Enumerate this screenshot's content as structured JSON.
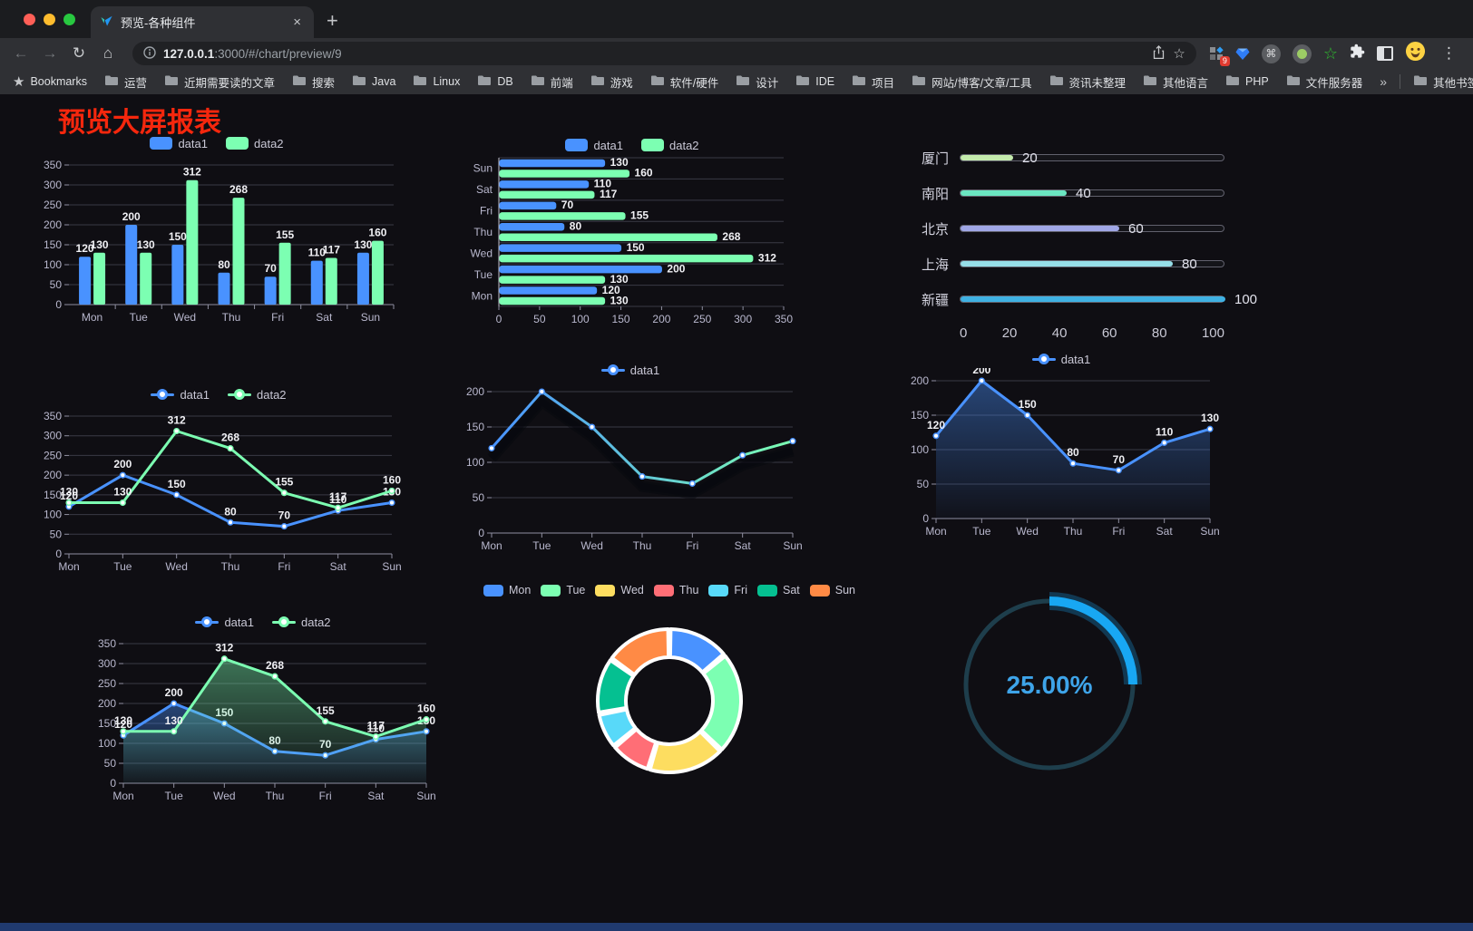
{
  "browser": {
    "tab_title": "预览-各种组件",
    "url_host": "127.0.0.1",
    "url_path": ":3000/#/chart/preview/9",
    "bookmarks_label": "Bookmarks",
    "bookmarks": [
      "运营",
      "近期需要读的文章",
      "搜索",
      "Java",
      "Linux",
      "DB",
      "前端",
      "游戏",
      "软件/硬件",
      "设计",
      "IDE",
      "项目",
      "网站/博客/文章/工具",
      "资讯未整理",
      "其他语言",
      "PHP",
      "文件服务器"
    ],
    "overflow_chevron": "»",
    "other_bookmarks": "其他书签",
    "extension_badge": "9",
    "new_tab_label": "+",
    "tab_close_label": "×"
  },
  "page": {
    "title": "预览大屏报表",
    "title_color": "#f5270d"
  },
  "chart_data": [
    {
      "id": "grouped-bar",
      "type": "bar",
      "categories": [
        "Mon",
        "Tue",
        "Wed",
        "Thu",
        "Fri",
        "Sat",
        "Sun"
      ],
      "series": [
        {
          "name": "data1",
          "color": "#4992ff",
          "values": [
            120,
            200,
            150,
            80,
            70,
            110,
            130
          ]
        },
        {
          "name": "data2",
          "color": "#7cffb2",
          "values": [
            130,
            130,
            312,
            268,
            155,
            117,
            160
          ]
        }
      ],
      "ylim": [
        0,
        350
      ],
      "ystep": 50,
      "labels": true,
      "legend": {
        "marker": "rect",
        "position": "top"
      }
    },
    {
      "id": "grouped-bar-horizontal",
      "type": "barH",
      "categories": [
        "Mon",
        "Tue",
        "Wed",
        "Thu",
        "Fri",
        "Sat",
        "Sun"
      ],
      "series": [
        {
          "name": "data1",
          "color": "#4992ff",
          "values": [
            120,
            200,
            150,
            80,
            70,
            110,
            130
          ]
        },
        {
          "name": "data2",
          "color": "#7cffb2",
          "values": [
            130,
            130,
            312,
            268,
            155,
            117,
            160
          ]
        }
      ],
      "xlim": [
        0,
        350
      ],
      "xstep": 50,
      "labels": true,
      "legend": {
        "marker": "rect",
        "position": "top"
      }
    },
    {
      "id": "city-progress",
      "type": "progress",
      "items": [
        {
          "label": "厦门",
          "value": 20,
          "color": "#c4ebad"
        },
        {
          "label": "南阳",
          "value": 40,
          "color": "#6be6c1"
        },
        {
          "label": "北京",
          "value": 60,
          "color": "#a0a7e6"
        },
        {
          "label": "上海",
          "value": 80,
          "color": "#96dee8"
        },
        {
          "label": "新疆",
          "value": 100,
          "color": "#3fb1e3"
        }
      ],
      "xlim": [
        0,
        100
      ],
      "ticks": [
        0,
        20,
        40,
        60,
        80,
        100
      ]
    },
    {
      "id": "two-line",
      "type": "line",
      "categories": [
        "Mon",
        "Tue",
        "Wed",
        "Thu",
        "Fri",
        "Sat",
        "Sun"
      ],
      "series": [
        {
          "name": "data1",
          "color": "#4992ff",
          "values": [
            120,
            200,
            150,
            80,
            70,
            110,
            130
          ]
        },
        {
          "name": "data2",
          "color": "#7cffb2",
          "values": [
            130,
            130,
            312,
            268,
            155,
            117,
            160
          ]
        }
      ],
      "ylim": [
        0,
        350
      ],
      "ystep": 50,
      "labels": true,
      "legend": {
        "marker": "line",
        "position": "top"
      }
    },
    {
      "id": "gradient-line",
      "type": "line",
      "categories": [
        "Mon",
        "Tue",
        "Wed",
        "Thu",
        "Fri",
        "Sat",
        "Sun"
      ],
      "series": [
        {
          "name": "data1",
          "color": "#4992ff",
          "gradient": [
            "#4992ff",
            "#7cffb2"
          ],
          "values": [
            120,
            200,
            150,
            80,
            70,
            110,
            130
          ]
        }
      ],
      "ylim": [
        0,
        200
      ],
      "ystep": 50,
      "labels": false,
      "shadow": true,
      "legend": {
        "marker": "line",
        "position": "top"
      }
    },
    {
      "id": "area-line",
      "type": "line",
      "categories": [
        "Mon",
        "Tue",
        "Wed",
        "Thu",
        "Fri",
        "Sat",
        "Sun"
      ],
      "series": [
        {
          "name": "data1",
          "color": "#4992ff",
          "area": true,
          "values": [
            120,
            200,
            150,
            80,
            70,
            110,
            130
          ]
        }
      ],
      "ylim": [
        0,
        200
      ],
      "ystep": 50,
      "labels": true,
      "legend": {
        "marker": "line",
        "position": "top"
      }
    },
    {
      "id": "two-area-line",
      "type": "line",
      "categories": [
        "Mon",
        "Tue",
        "Wed",
        "Thu",
        "Fri",
        "Sat",
        "Sun"
      ],
      "series": [
        {
          "name": "data1",
          "color": "#4992ff",
          "area": true,
          "values": [
            120,
            200,
            150,
            80,
            70,
            110,
            130
          ]
        },
        {
          "name": "data2",
          "color": "#7cffb2",
          "area": true,
          "values": [
            130,
            130,
            312,
            268,
            155,
            117,
            160
          ]
        }
      ],
      "ylim": [
        0,
        350
      ],
      "ystep": 50,
      "labels": true,
      "legend": {
        "marker": "line",
        "position": "top"
      }
    },
    {
      "id": "weekday-donut",
      "type": "donut",
      "items": [
        {
          "label": "Mon",
          "value": 120,
          "color": "#4992ff"
        },
        {
          "label": "Tue",
          "value": 200,
          "color": "#7cffb2"
        },
        {
          "label": "Wed",
          "value": 150,
          "color": "#fddd60"
        },
        {
          "label": "Thu",
          "value": 80,
          "color": "#ff6e76"
        },
        {
          "label": "Fri",
          "value": 70,
          "color": "#58d9f9"
        },
        {
          "label": "Sat",
          "value": 110,
          "color": "#05c091"
        },
        {
          "label": "Sun",
          "value": 130,
          "color": "#ff8a45"
        }
      ],
      "legend": {
        "marker": "rect",
        "position": "top"
      }
    },
    {
      "id": "percent-gauge",
      "type": "gauge",
      "value": 25,
      "text": "25.00%",
      "color": "#18a7f3",
      "track": "#1e3e4c",
      "text_color": "#3ea4e9"
    }
  ]
}
